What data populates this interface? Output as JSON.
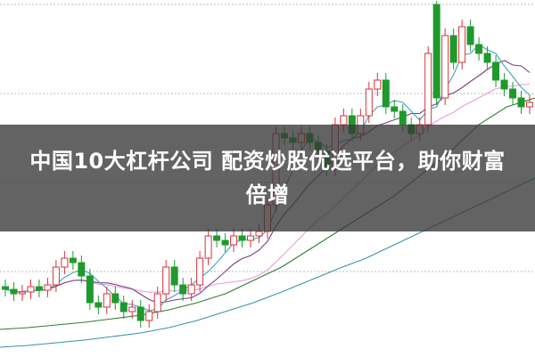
{
  "headline": {
    "line1": "中国10大杠杆公司 配资炒股优选平台，助你财富",
    "line2": "倍增"
  },
  "chart_data": {
    "type": "candlestick",
    "title": "",
    "grid": true,
    "ylim": [
      0,
      40
    ],
    "colors": {
      "up": "#d9303a",
      "down": "#1e9a2c",
      "ma5": "#3aa6b9",
      "ma10": "#7a3f7a",
      "ma20": "#e79be0",
      "ma_long1": "#2f7d32",
      "ma_long2": "#3d8fb0",
      "grid": "#bbbbbb"
    },
    "open": [
      7.8,
      7.5,
      7.0,
      7.2,
      7.8,
      7.4,
      8.0,
      10.0,
      11.0,
      10.5,
      9.0,
      6.0,
      5.5,
      7.0,
      6.0,
      5.0,
      5.5,
      4.0,
      5.0,
      7.0,
      10.0,
      8.0,
      7.0,
      8.0,
      11.0,
      13.5,
      13.0,
      12.5,
      13.5,
      13.0,
      13.5,
      14.0,
      17.0,
      25.0,
      24.5,
      24.0,
      25.0,
      24.0,
      23.0,
      21.0,
      26.0,
      27.0,
      25.0,
      27.0,
      30.0,
      31.0,
      28.0,
      27.5,
      26.0,
      25.0,
      26.0,
      39.5,
      29.0,
      36.0,
      33.0,
      37.0,
      35.0,
      34.0,
      33.0,
      31.0,
      30.0,
      29.0,
      28.0
    ],
    "close": [
      7.5,
      7.0,
      7.2,
      7.8,
      7.4,
      8.0,
      10.0,
      11.0,
      10.5,
      9.0,
      6.0,
      5.5,
      7.0,
      6.0,
      5.0,
      5.5,
      4.0,
      5.0,
      7.0,
      10.0,
      8.0,
      7.0,
      8.0,
      11.0,
      13.5,
      13.0,
      12.5,
      13.5,
      13.0,
      13.5,
      14.0,
      17.0,
      25.0,
      24.5,
      24.0,
      25.0,
      24.0,
      23.0,
      21.0,
      26.0,
      27.0,
      25.0,
      27.0,
      30.0,
      31.0,
      28.0,
      27.5,
      26.0,
      25.0,
      26.0,
      34.0,
      29.0,
      36.0,
      33.0,
      37.0,
      35.0,
      34.0,
      33.0,
      31.0,
      30.0,
      29.0,
      28.0,
      28.5
    ],
    "high": [
      8.6,
      8.3,
      8.0,
      8.6,
      8.6,
      8.8,
      10.8,
      11.8,
      11.8,
      11.3,
      9.8,
      6.8,
      7.8,
      7.8,
      6.8,
      6.3,
      6.3,
      5.8,
      7.8,
      10.8,
      10.8,
      8.8,
      8.8,
      11.8,
      14.3,
      14.3,
      13.8,
      14.3,
      14.3,
      14.3,
      14.8,
      17.8,
      25.8,
      25.8,
      25.3,
      25.8,
      25.8,
      24.8,
      23.8,
      26.8,
      27.8,
      27.8,
      27.8,
      30.8,
      31.8,
      31.8,
      28.8,
      28.3,
      26.8,
      26.8,
      34.8,
      39.9,
      36.8,
      36.8,
      37.8,
      37.8,
      35.8,
      34.8,
      33.8,
      31.8,
      30.8,
      29.8,
      29.3
    ],
    "low": [
      6.7,
      6.2,
      6.2,
      6.4,
      6.6,
      6.6,
      7.2,
      9.2,
      9.7,
      8.2,
      5.2,
      4.7,
      4.7,
      5.2,
      4.2,
      4.2,
      3.2,
      3.2,
      4.2,
      6.2,
      7.2,
      6.2,
      6.2,
      7.2,
      10.2,
      12.2,
      11.7,
      11.7,
      12.2,
      12.2,
      12.7,
      13.2,
      16.2,
      23.7,
      23.2,
      23.2,
      23.2,
      22.2,
      20.2,
      20.2,
      25.2,
      24.2,
      24.2,
      26.2,
      29.2,
      27.2,
      26.7,
      25.2,
      24.2,
      24.2,
      25.2,
      28.2,
      28.2,
      32.2,
      32.2,
      34.2,
      33.2,
      32.2,
      30.2,
      29.2,
      28.2,
      27.2,
      27.2
    ],
    "ma_long1": [
      3.0,
      3.2,
      3.5,
      3.8,
      4.2,
      4.6,
      5.2,
      6.0,
      7.0,
      8.5,
      10.0,
      12.0,
      14.0,
      16.0,
      18.0,
      20.5,
      23.0,
      26.0,
      28.0,
      29.0
    ],
    "ma_long2": [
      1.0,
      1.2,
      1.5,
      1.8,
      2.2,
      2.6,
      3.2,
      4.0,
      5.0,
      6.0,
      7.2,
      8.5,
      9.8,
      11.0,
      12.5,
      14.0,
      15.5,
      17.0,
      18.5,
      20.0
    ]
  }
}
